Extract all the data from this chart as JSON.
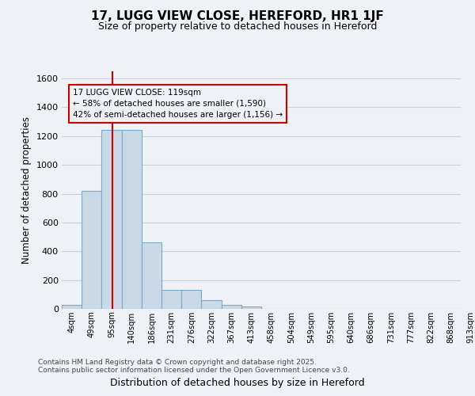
{
  "title1": "17, LUGG VIEW CLOSE, HEREFORD, HR1 1JF",
  "title2": "Size of property relative to detached houses in Hereford",
  "xlabel": "Distribution of detached houses by size in Hereford",
  "ylabel": "Number of detached properties",
  "footer1": "Contains HM Land Registry data © Crown copyright and database right 2025.",
  "footer2": "Contains public sector information licensed under the Open Government Licence v3.0.",
  "bin_labels": [
    "4sqm",
    "49sqm",
    "95sqm",
    "140sqm",
    "186sqm",
    "231sqm",
    "276sqm",
    "322sqm",
    "367sqm",
    "413sqm",
    "458sqm",
    "504sqm",
    "549sqm",
    "595sqm",
    "640sqm",
    "686sqm",
    "731sqm",
    "777sqm",
    "822sqm",
    "868sqm",
    "913sqm"
  ],
  "bar_values": [
    25,
    820,
    1245,
    1245,
    460,
    130,
    130,
    60,
    25,
    15,
    0,
    0,
    0,
    0,
    0,
    0,
    0,
    0,
    0,
    0
  ],
  "bar_color": "#c9d9e8",
  "bar_edge_color": "#7aaac8",
  "grid_color": "#c8d0d8",
  "bg_color": "#eef2f7",
  "vline_color": "#cc0000",
  "vline_x": 2.533,
  "annotation_text": "17 LUGG VIEW CLOSE: 119sqm\n← 58% of detached houses are smaller (1,590)\n42% of semi-detached houses are larger (1,156) →",
  "annotation_box_edgecolor": "#cc0000",
  "ylim": [
    0,
    1650
  ],
  "yticks": [
    0,
    200,
    400,
    600,
    800,
    1000,
    1200,
    1400,
    1600
  ],
  "n_bars": 20
}
